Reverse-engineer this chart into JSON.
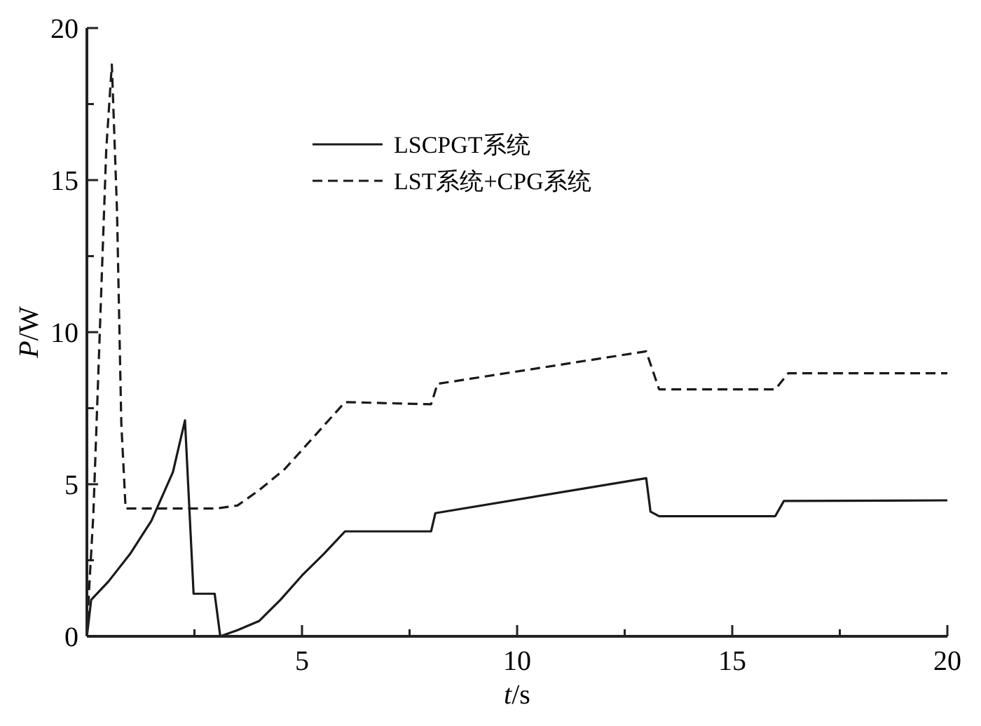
{
  "chart_data": {
    "type": "line",
    "xlabel": "t/s",
    "ylabel": "P/W",
    "xlim": [
      0,
      20
    ],
    "ylim": [
      0,
      20
    ],
    "xticks": [
      {
        "value": 0,
        "label": null
      },
      {
        "value": 2.5,
        "label": null
      },
      5,
      {
        "value": 7.5,
        "label": null
      },
      10,
      {
        "value": 12.5,
        "label": null
      },
      15,
      {
        "value": 17.5,
        "label": null
      },
      20
    ],
    "yticks": [
      0,
      {
        "value": 2.5,
        "label": null
      },
      5,
      {
        "value": 7.5,
        "label": null
      },
      10,
      {
        "value": 12.5,
        "label": null
      },
      15,
      {
        "value": 17.5,
        "label": null
      },
      20
    ],
    "grid": false,
    "legend": "top",
    "series": [
      {
        "name": "LSCPGT系统",
        "color": "#1a1a1a",
        "line_style": "solid",
        "x": [
          0,
          0.1,
          0.5,
          1,
          1.5,
          2,
          2.28,
          2.48,
          2.97,
          3.1,
          3.5,
          4,
          4.5,
          5,
          5.5,
          6,
          8,
          8.1,
          13,
          13.1,
          13.3,
          16,
          16.2,
          20
        ],
        "values": [
          0,
          1.2,
          1.8,
          2.7,
          3.8,
          5.4,
          7.1,
          1.4,
          1.4,
          0,
          0.2,
          0.5,
          1.2,
          2,
          2.7,
          3.45,
          3.45,
          4.05,
          5.2,
          4.1,
          3.95,
          3.95,
          4.45,
          4.47
        ]
      },
      {
        "name": "LST系统+CPG系统",
        "color": "#1a1a1a",
        "line_style": "dashed",
        "x": [
          0,
          0.05,
          0.15,
          0.3,
          0.45,
          0.58,
          0.7,
          0.8,
          0.9,
          3,
          3.5,
          4,
          4.6,
          5.3,
          6,
          8,
          8.15,
          13,
          13.3,
          16,
          16.3,
          20
        ],
        "values": [
          0,
          1.5,
          4,
          10,
          16,
          18.8,
          14,
          7,
          4.2,
          4.2,
          4.3,
          4.8,
          5.5,
          6.6,
          7.7,
          7.63,
          8.3,
          9.37,
          8.12,
          8.12,
          8.65,
          8.65
        ]
      }
    ]
  }
}
